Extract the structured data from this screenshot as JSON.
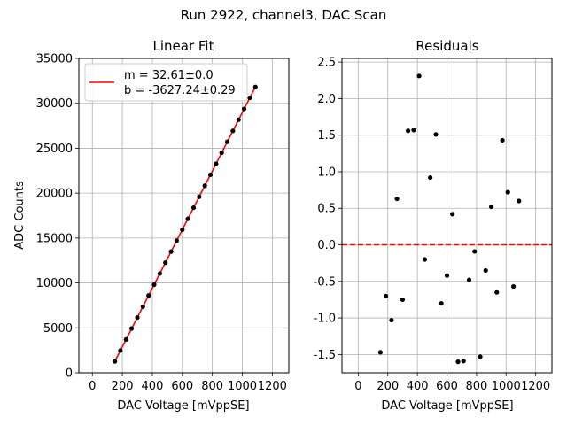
{
  "figure_title": "Run 2922, channel3, DAC Scan",
  "colors": {
    "fit_line": "#ff0000",
    "points": "#000000",
    "zero_line": "#ff0000",
    "grid": "#b0b0b0"
  },
  "chart_data": [
    {
      "type": "scatter",
      "title": "Linear Fit",
      "xlabel": "DAC Voltage [mVppSE]",
      "ylabel": "ADC Counts",
      "xlim": [
        -90,
        1310
      ],
      "ylim": [
        0,
        35000
      ],
      "xticks": [
        0,
        200,
        400,
        600,
        800,
        1000,
        1200
      ],
      "yticks": [
        0,
        5000,
        10000,
        15000,
        20000,
        25000,
        30000,
        35000
      ],
      "grid": true,
      "legend_position": "upper-left",
      "legend": [
        "m = 32.61±0.0",
        "b = -3627.24±0.29"
      ],
      "fit": {
        "slope": 32.61,
        "intercept": -3627.24,
        "x_range": [
          150,
          1090
        ]
      },
      "series": [
        {
          "x": [
            150,
            187,
            225,
            262,
            300,
            337,
            375,
            412,
            450,
            487,
            525,
            562,
            600,
            637,
            675,
            712,
            750,
            787,
            825,
            862,
            900,
            937,
            975,
            1012,
            1050,
            1087
          ],
          "y": [
            1265,
            2469,
            3708,
            4929,
            6157,
            7365,
            8602,
            9809,
            11047,
            12261,
            13493,
            14700,
            15937,
            17146,
            18379,
            19592,
            20830,
            22041,
            23273,
            24486,
            25722,
            26932,
            28170,
            29383,
            30615,
            31825
          ]
        }
      ]
    },
    {
      "type": "scatter",
      "title": "Residuals",
      "xlabel": "DAC Voltage [mVppSE]",
      "ylabel": "",
      "xlim": [
        -110,
        1310
      ],
      "ylim": [
        -1.75,
        2.55
      ],
      "xticks": [
        0,
        200,
        400,
        600,
        800,
        1000,
        1200
      ],
      "yticks": [
        -1.5,
        -1.0,
        -0.5,
        0.0,
        0.5,
        1.0,
        1.5,
        2.0,
        2.5
      ],
      "grid": true,
      "reference_line": {
        "y": 0.0,
        "style": "dashed"
      },
      "series": [
        {
          "x": [
            150,
            187,
            225,
            262,
            300,
            337,
            375,
            412,
            450,
            487,
            525,
            562,
            600,
            637,
            675,
            712,
            750,
            787,
            825,
            862,
            900,
            937,
            975,
            1012,
            1050,
            1087
          ],
          "y": [
            -1.47,
            -0.7,
            -1.03,
            0.63,
            -0.75,
            1.56,
            1.57,
            2.31,
            -0.2,
            0.92,
            1.51,
            -0.8,
            -0.42,
            0.42,
            -1.6,
            -1.59,
            -0.48,
            -0.09,
            -1.53,
            -0.35,
            0.52,
            -0.65,
            1.43,
            0.72,
            -0.57,
            0.6
          ]
        }
      ]
    }
  ]
}
